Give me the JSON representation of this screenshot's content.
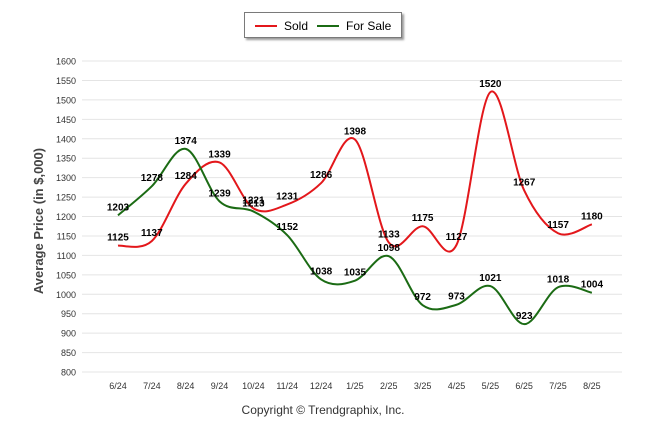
{
  "chart_data": {
    "type": "line",
    "categories": [
      "6/24",
      "7/24",
      "8/24",
      "9/24",
      "10/24",
      "11/24",
      "12/24",
      "1/25",
      "2/25",
      "3/25",
      "4/25",
      "5/25",
      "6/25",
      "7/25",
      "8/25"
    ],
    "series": [
      {
        "name": "Sold",
        "color": "#e3171b",
        "values": [
          1125,
          1137,
          1284,
          1339,
          1221,
          1231,
          1286,
          1398,
          1133,
          1175,
          1127,
          1520,
          1267,
          1157,
          1180
        ]
      },
      {
        "name": "For Sale",
        "color": "#1b6b14",
        "values": [
          1203,
          1278,
          1374,
          1239,
          1213,
          1152,
          1038,
          1035,
          1098,
          972,
          973,
          1021,
          923,
          1018,
          1004
        ]
      }
    ],
    "title": "",
    "xlabel": "",
    "ylabel": "Average Price (in $,000)",
    "ylim": [
      800,
      1600
    ],
    "yticks": [
      800,
      850,
      900,
      950,
      1000,
      1050,
      1100,
      1150,
      1200,
      1250,
      1300,
      1350,
      1400,
      1450,
      1500,
      1550,
      1600
    ],
    "grid": true,
    "legend": "top-center"
  },
  "footer": {
    "copyright": "Copyright © Trendgraphix, Inc."
  }
}
